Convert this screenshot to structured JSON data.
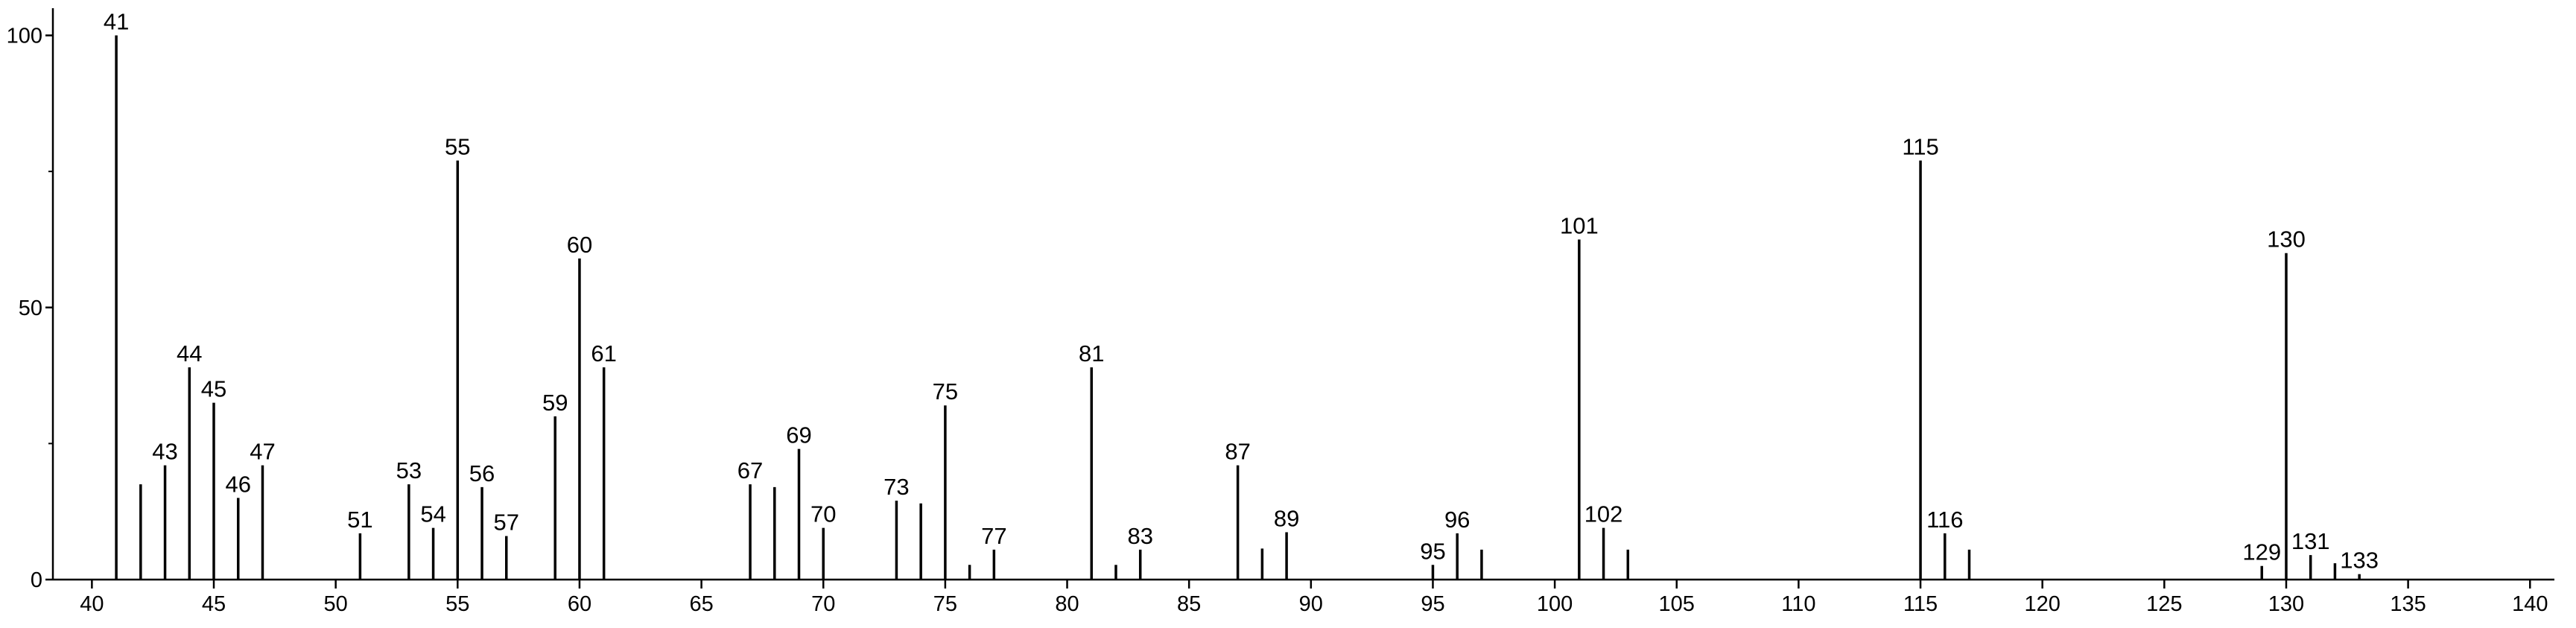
{
  "chart_data": {
    "type": "stick",
    "x": [
      41,
      42,
      43,
      44,
      45,
      46,
      47,
      51,
      53,
      54,
      55,
      56,
      57,
      59,
      60,
      61,
      67,
      68,
      69,
      70,
      73,
      74,
      75,
      76,
      77,
      81,
      82,
      83,
      87,
      88,
      89,
      95,
      96,
      97,
      101,
      102,
      103,
      115,
      116,
      117,
      129,
      130,
      131,
      132,
      133
    ],
    "values": [
      100,
      17.5,
      21,
      39,
      32.5,
      15,
      21,
      8.5,
      17.5,
      9.5,
      77,
      17,
      8,
      30,
      59,
      39,
      17.5,
      17,
      24,
      9.5,
      14.5,
      14,
      32,
      2.7,
      5.5,
      39,
      2.7,
      5.5,
      21,
      5.7,
      8.7,
      2.7,
      8.5,
      5.5,
      62.5,
      9.5,
      5.5,
      77,
      8.5,
      5.5,
      2.5,
      60,
      4.5,
      3,
      1
    ],
    "show_label": [
      true,
      false,
      true,
      true,
      true,
      true,
      true,
      true,
      true,
      true,
      true,
      true,
      true,
      true,
      true,
      true,
      true,
      false,
      true,
      true,
      true,
      false,
      true,
      false,
      true,
      true,
      false,
      true,
      true,
      false,
      true,
      true,
      true,
      false,
      true,
      true,
      false,
      true,
      true,
      false,
      true,
      true,
      true,
      false,
      true
    ],
    "color": "#000000",
    "xlim": [
      38.4,
      141
    ],
    "xticks": [
      40,
      45,
      50,
      55,
      60,
      65,
      70,
      75,
      80,
      85,
      90,
      95,
      100,
      105,
      110,
      115,
      120,
      125,
      130,
      135,
      140
    ],
    "ylim": [
      0,
      105
    ],
    "yticks": [
      0,
      50,
      100
    ],
    "yminorticks": [
      25,
      75
    ],
    "grid": false
  }
}
